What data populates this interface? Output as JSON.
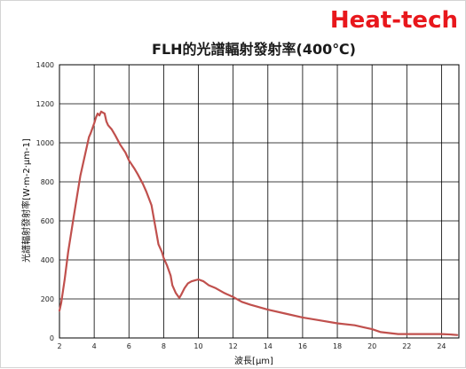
{
  "brand": {
    "logo_text": "Heat-tech",
    "logo_color": "#e8171c"
  },
  "chart_data": {
    "type": "line",
    "title": "FLH的光譜輻射發射率(400℃)",
    "xlabel": "波長[μm]",
    "ylabel": "光譜輻射發射率[W·m-2·μm-1]",
    "xlim": [
      2,
      25
    ],
    "ylim": [
      0,
      1400
    ],
    "xticks": [
      2,
      4,
      6,
      8,
      10,
      12,
      14,
      16,
      18,
      20,
      22,
      24
    ],
    "yticks": [
      0,
      200,
      400,
      600,
      800,
      1000,
      1200,
      1400
    ],
    "grid": true,
    "legend": "none",
    "series": [
      {
        "color": "#c0504d",
        "x": [
          2.0,
          2.1,
          2.3,
          2.5,
          2.8,
          3.0,
          3.2,
          3.5,
          3.7,
          3.8,
          4.0,
          4.1,
          4.2,
          4.3,
          4.4,
          4.5,
          4.6,
          4.7,
          4.8,
          5.0,
          5.2,
          5.5,
          5.8,
          6.0,
          6.3,
          6.5,
          6.8,
          7.0,
          7.3,
          7.5,
          7.7,
          7.9,
          8.0,
          8.2,
          8.4,
          8.5,
          8.7,
          8.9,
          9.0,
          9.2,
          9.4,
          9.6,
          9.8,
          10.0,
          10.3,
          10.6,
          11.0,
          11.5,
          12.0,
          12.5,
          13.0,
          14.0,
          15.0,
          16.0,
          17.0,
          18.0,
          19.0,
          19.5,
          20.0,
          20.5,
          21.0,
          21.5,
          22.0,
          23.0,
          24.0,
          24.5,
          24.9
        ],
        "y": [
          140,
          180,
          300,
          440,
          610,
          720,
          830,
          950,
          1030,
          1050,
          1100,
          1130,
          1150,
          1140,
          1160,
          1155,
          1150,
          1110,
          1090,
          1070,
          1040,
          990,
          950,
          910,
          870,
          840,
          790,
          750,
          680,
          580,
          480,
          440,
          410,
          370,
          320,
          270,
          230,
          205,
          220,
          255,
          280,
          290,
          295,
          300,
          290,
          270,
          255,
          230,
          210,
          185,
          170,
          145,
          125,
          105,
          90,
          75,
          65,
          55,
          45,
          30,
          25,
          20,
          20,
          20,
          20,
          18,
          15
        ]
      }
    ]
  }
}
